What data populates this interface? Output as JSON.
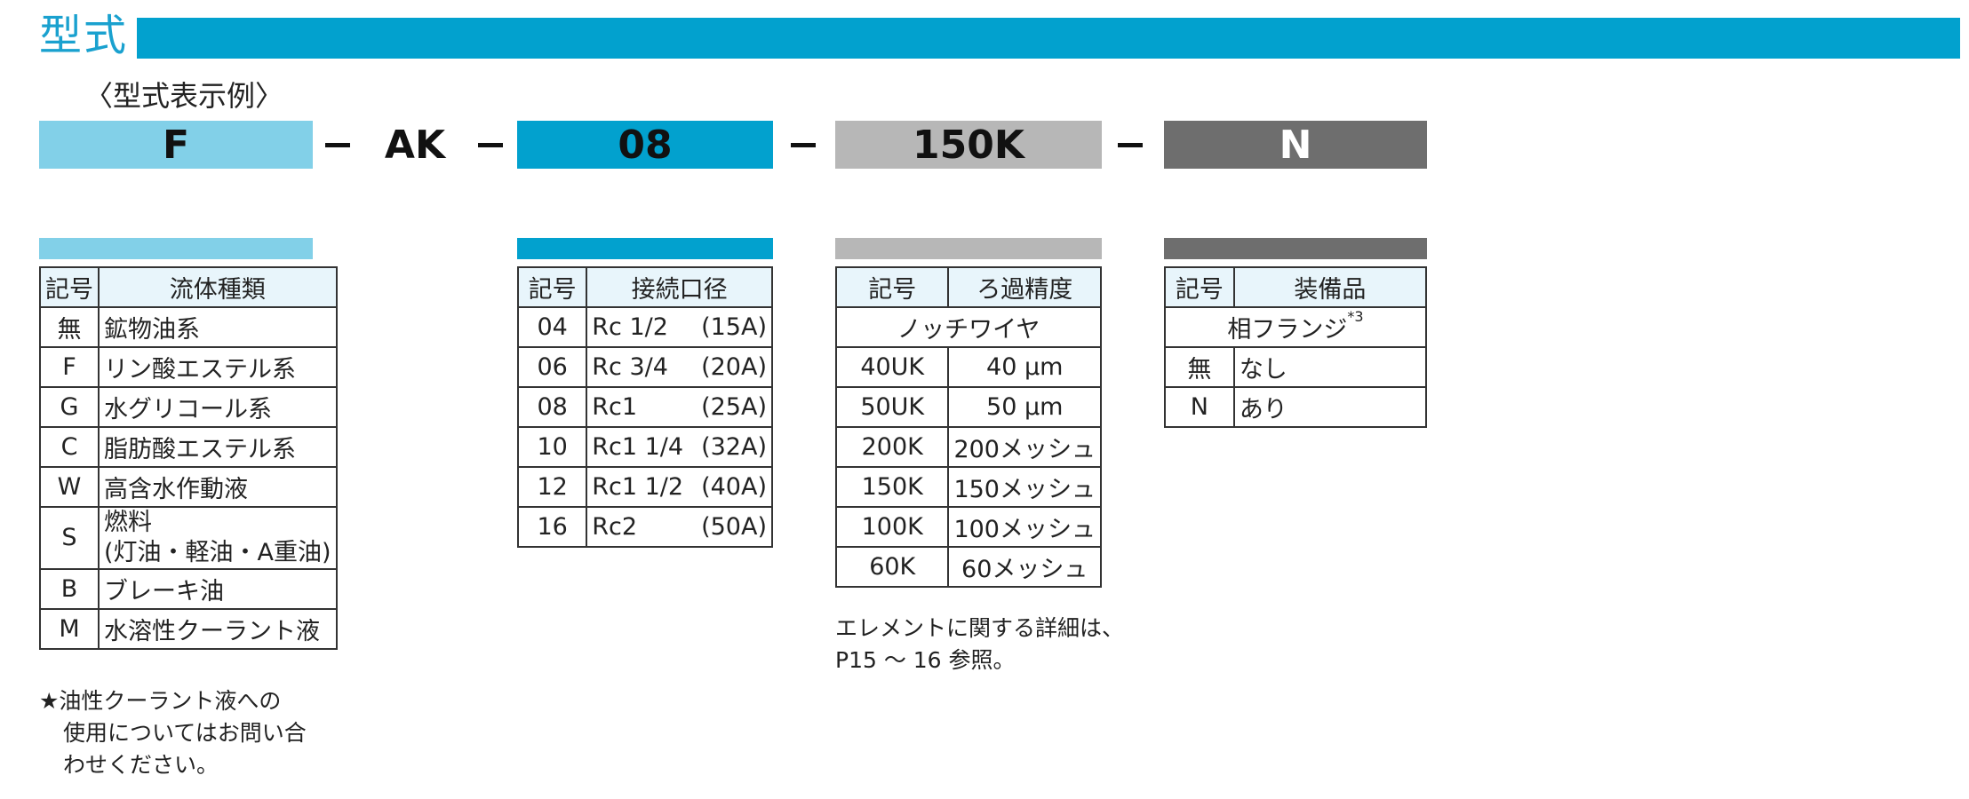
{
  "header": {
    "title": "型式",
    "example_label": "〈型式表示例〉"
  },
  "model_code": {
    "fluid": "F",
    "series": "AK",
    "port": "08",
    "filtration": "150K",
    "option": "N"
  },
  "colors": {
    "title_bar": "#02a1ce",
    "fluid": "#82d0e8",
    "port": "#02a1ce",
    "filtration": "#b7b7b7",
    "option": "#6e6e6e",
    "header_cell": "#e8f5fb"
  },
  "fluid_table": {
    "headers": [
      "記号",
      "流体種類"
    ],
    "rows": [
      {
        "code": "無",
        "name": "鉱物油系"
      },
      {
        "code": "F",
        "name": "リン酸エステル系"
      },
      {
        "code": "G",
        "name": "水グリコール系"
      },
      {
        "code": "C",
        "name": "脂肪酸エステル系"
      },
      {
        "code": "W",
        "name": "高含水作動液"
      },
      {
        "code": "S",
        "name_line1": "燃料",
        "name_line2": "(灯油・軽油・A重油)"
      },
      {
        "code": "B",
        "name": "ブレーキ油"
      },
      {
        "code": "M",
        "name": "水溶性クーラント液"
      }
    ],
    "note_line1": "★油性クーラント液への",
    "note_line2": "使用についてはお問い合",
    "note_line3": "わせください。"
  },
  "port_table": {
    "headers": [
      "記号",
      "接続口径"
    ],
    "rows": [
      {
        "code": "04",
        "size": "Rc 1/2",
        "nominal": "(15A)"
      },
      {
        "code": "06",
        "size": "Rc 3/4",
        "nominal": "(20A)"
      },
      {
        "code": "08",
        "size": "Rc1",
        "nominal": "(25A)"
      },
      {
        "code": "10",
        "size": "Rc1 1/4",
        "nominal": "(32A)"
      },
      {
        "code": "12",
        "size": "Rc1 1/2",
        "nominal": "(40A)"
      },
      {
        "code": "16",
        "size": "Rc2",
        "nominal": "(50A)"
      }
    ]
  },
  "filtration_table": {
    "headers": [
      "記号",
      "ろ過精度"
    ],
    "group_label": "ノッチワイヤ",
    "rows": [
      {
        "code": "40UK",
        "accuracy": "40 μm"
      },
      {
        "code": "50UK",
        "accuracy": "50 μm"
      },
      {
        "code": "200K",
        "accuracy": "200メッシュ"
      },
      {
        "code": "150K",
        "accuracy": "150メッシュ"
      },
      {
        "code": "100K",
        "accuracy": "100メッシュ"
      },
      {
        "code": "60K",
        "accuracy": "60メッシュ"
      }
    ],
    "note_line1": "エレメントに関する詳細は、",
    "note_line2": "P15 ～ 16 参照。"
  },
  "option_table": {
    "headers": [
      "記号",
      "装備品"
    ],
    "group_label": "相フランジ",
    "group_note": "*3",
    "rows": [
      {
        "code": "無",
        "value": "なし"
      },
      {
        "code": "N",
        "value": "あり"
      }
    ]
  }
}
